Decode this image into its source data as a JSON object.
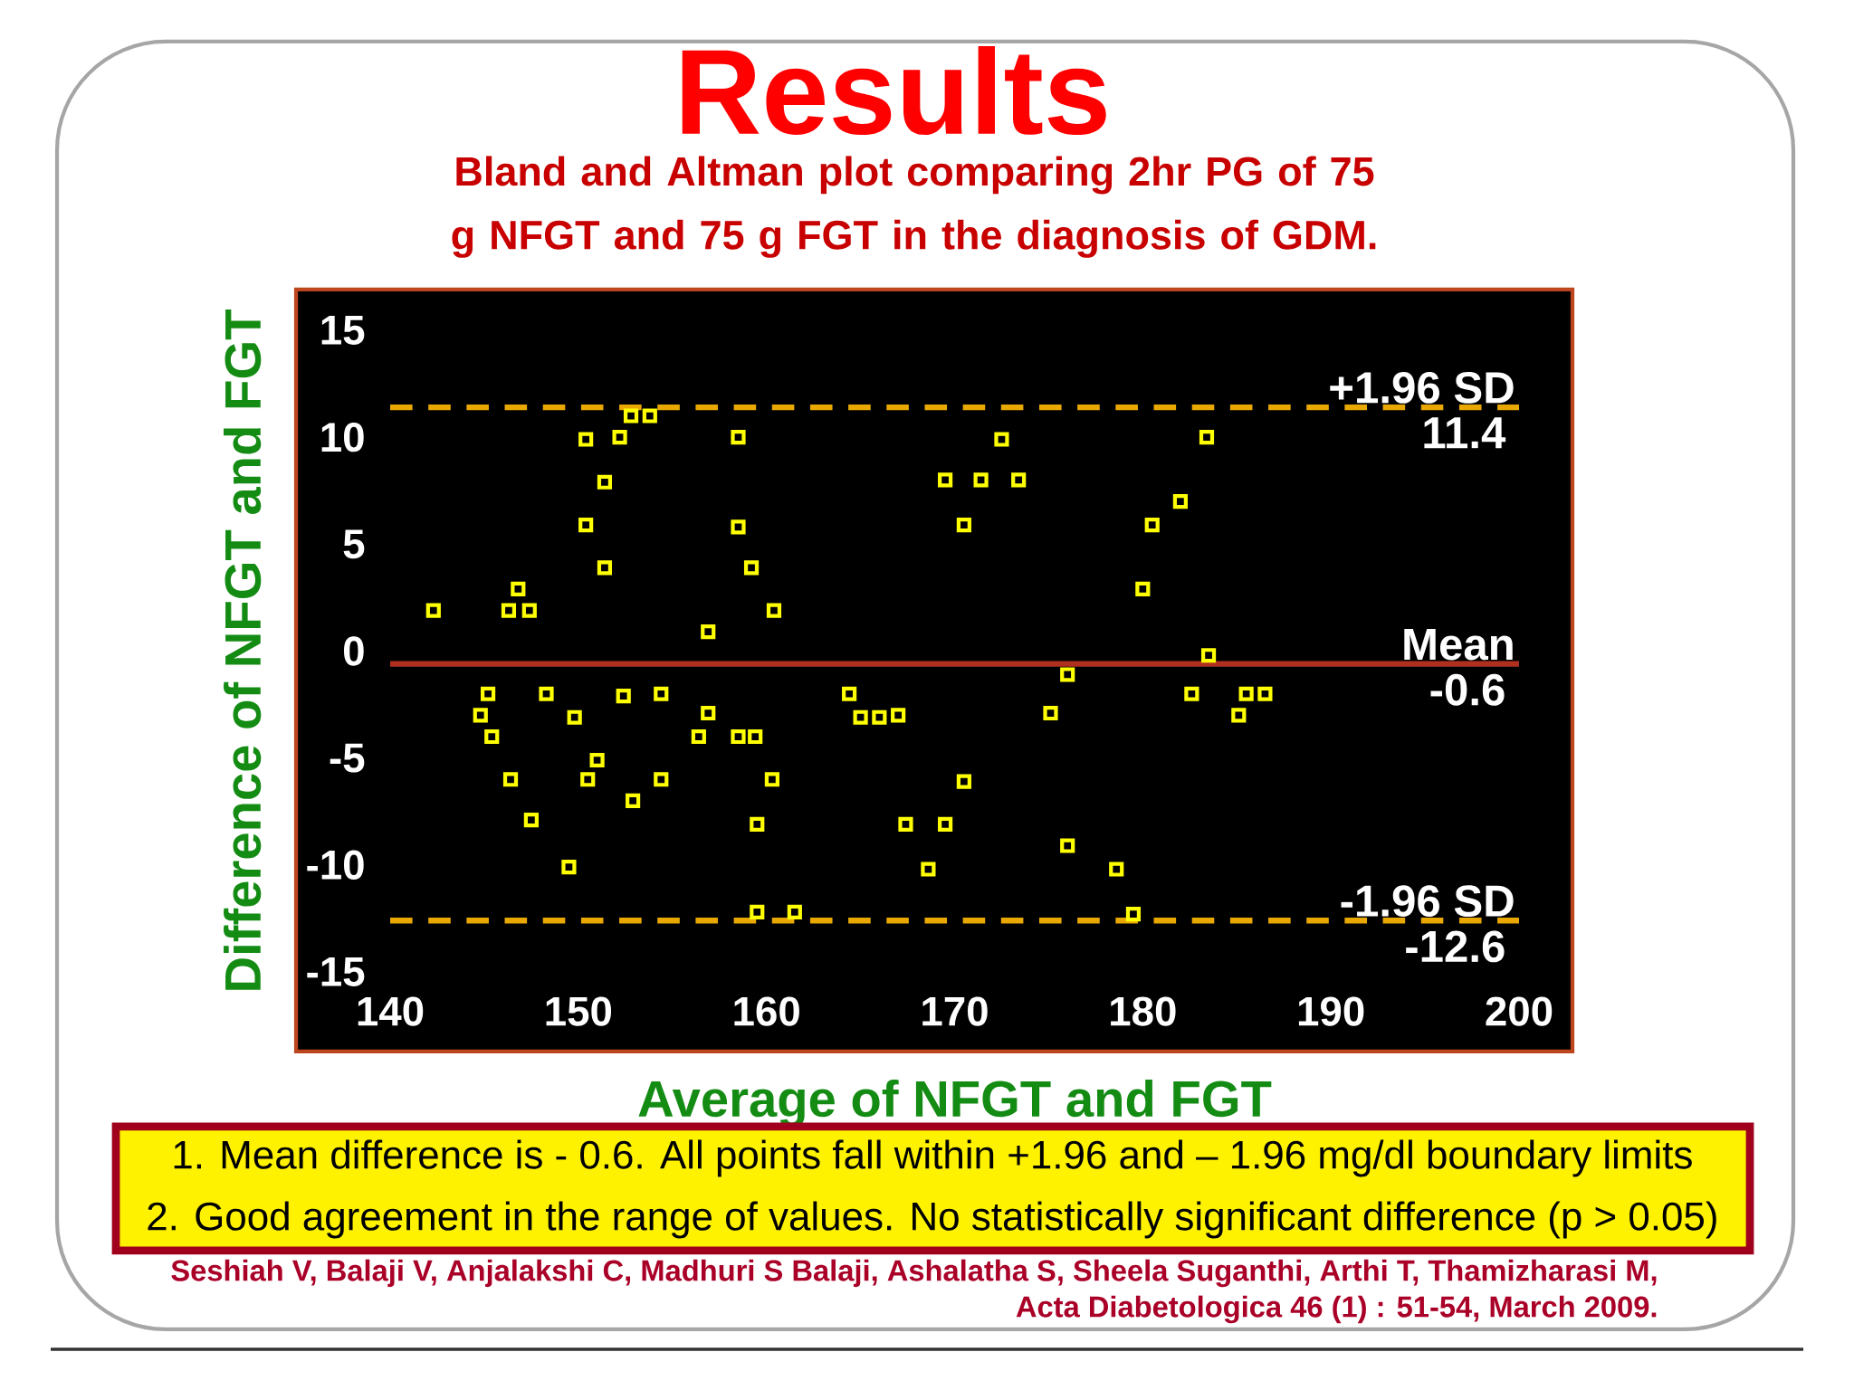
{
  "chart_data": {
    "type": "scatter",
    "title": "Results",
    "subtitle": "Bland and Altman plot comparing 2hr PG of 75 g NFGT and 75 g FGT in the diagnosis of GDM.",
    "xlabel": "Average of NFGT and FGT",
    "ylabel": "Difference of NFGT and FGT",
    "x": [
      142.3,
      146.8,
      146.3,
      147.4,
      150.4,
      152.2,
      152.8,
      153.8,
      151.4,
      150.4,
      151.4,
      158.5,
      158.5,
      159.2,
      160.4,
      156.9,
      145.2,
      144.8,
      145.4,
      148.3,
      149.8,
      152.4,
      154.4,
      151.0,
      150.5,
      146.4,
      154.4,
      152.9,
      147.5,
      149.5,
      156.9,
      156.4,
      158.5,
      159.4,
      160.3,
      159.5,
      159.5,
      161.5,
      164.4,
      165.0,
      166.0,
      167.0,
      167.4,
      168.6,
      169.5,
      171.4,
      173.4,
      172.5,
      170.5,
      183.4,
      182.0,
      180.5,
      180.0,
      183.5,
      176.0,
      175.1,
      182.6,
      185.5,
      186.5,
      185.1,
      170.5,
      169.5,
      176.0,
      178.6,
      179.5
    ],
    "values": [
      1.9,
      2.9,
      1.9,
      1.9,
      9.9,
      10.0,
      11.0,
      11.0,
      7.9,
      5.9,
      3.9,
      10.0,
      5.8,
      3.9,
      1.9,
      0.9,
      -2.0,
      -3.0,
      -4.0,
      -2.0,
      -3.1,
      -2.1,
      -2.0,
      -5.1,
      -6.0,
      -6.0,
      -6.0,
      -7.0,
      -7.9,
      -10.1,
      -2.9,
      -4.0,
      -4.0,
      -4.0,
      -6.0,
      -8.1,
      -12.2,
      -12.2,
      -2.0,
      -3.1,
      -3.1,
      -3.0,
      -8.1,
      -10.2,
      8.0,
      8.0,
      8.0,
      9.9,
      5.9,
      10.0,
      7.0,
      5.9,
      2.9,
      -0.2,
      -1.1,
      -2.9,
      -2.0,
      -2.0,
      -2.0,
      -3.0,
      -6.1,
      -8.1,
      -9.1,
      -10.2,
      -12.3
    ],
    "color": "#ffff00",
    "marker": "square",
    "xlim": [
      140,
      200
    ],
    "ylim": [
      -15,
      15
    ],
    "xticks": [
      140,
      150,
      160,
      170,
      180,
      190,
      200
    ],
    "yticks": [
      -15,
      -10,
      -5,
      0,
      5,
      10,
      15
    ],
    "ref_lines": [
      {
        "axis": "y",
        "value": 11.4,
        "label": "+1.96 SD",
        "color": "#e8a800",
        "line_style": "dashed"
      },
      {
        "axis": "y",
        "value": -0.6,
        "label": "Mean",
        "color": "#b03020",
        "line_style": "solid"
      },
      {
        "axis": "y",
        "value": -12.6,
        "label": "-1.96 SD",
        "color": "#e8a800",
        "line_style": "dashed"
      }
    ],
    "annotations": [
      {
        "text": "11.4",
        "y": 11.4
      },
      {
        "text": "-0.6",
        "y": -0.6
      },
      {
        "text": "-12.6",
        "y": -12.6
      },
      "1.    Mean difference is  - 0.6. All points fall within +1.96 and – 1.96 mg/dl boundary limits",
      "2.    Good agreement in the range of values. No statistically significant difference (p > 0.05)",
      "Seshiah V, Balaji V, Anjalakshi C, Madhuri S Balaji, Ashalatha S, Sheela Suganthi, Arthi T, Thamizharasi M,",
      "Acta Diabetologica 46 (1) : 51-54, March 2009."
    ]
  }
}
